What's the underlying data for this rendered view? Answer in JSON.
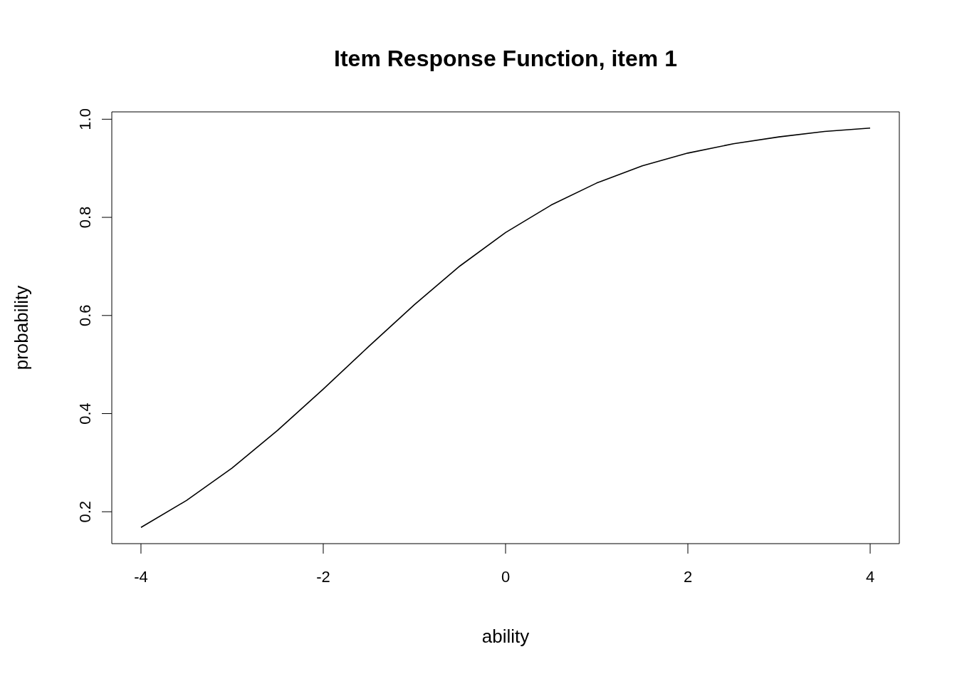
{
  "chart_data": {
    "type": "line",
    "title": "Item Response Function, item 1",
    "xlabel": "ability",
    "ylabel": "probability",
    "x": [
      -4,
      -3.5,
      -3,
      -2.5,
      -2,
      -1.5,
      -1,
      -0.5,
      0,
      0.5,
      1,
      1.5,
      2,
      2.5,
      3,
      3.5,
      4
    ],
    "series": [
      {
        "color": "#000000",
        "values": [
          0.168,
          0.223,
          0.289,
          0.366,
          0.45,
          0.537,
          0.622,
          0.701,
          0.769,
          0.825,
          0.87,
          0.905,
          0.931,
          0.95,
          0.964,
          0.975,
          0.982
        ]
      }
    ],
    "xlim": [
      -4.32,
      4.32
    ],
    "ylim": [
      0.135,
      1.015
    ],
    "xticks": [
      -4,
      -2,
      0,
      2,
      4
    ],
    "yticks": [
      0.2,
      0.4,
      0.6,
      0.8,
      {
        "value": 1,
        "label": "1.0"
      }
    ],
    "grid": false,
    "legend": false,
    "marker": "none",
    "line_style": "solid"
  }
}
